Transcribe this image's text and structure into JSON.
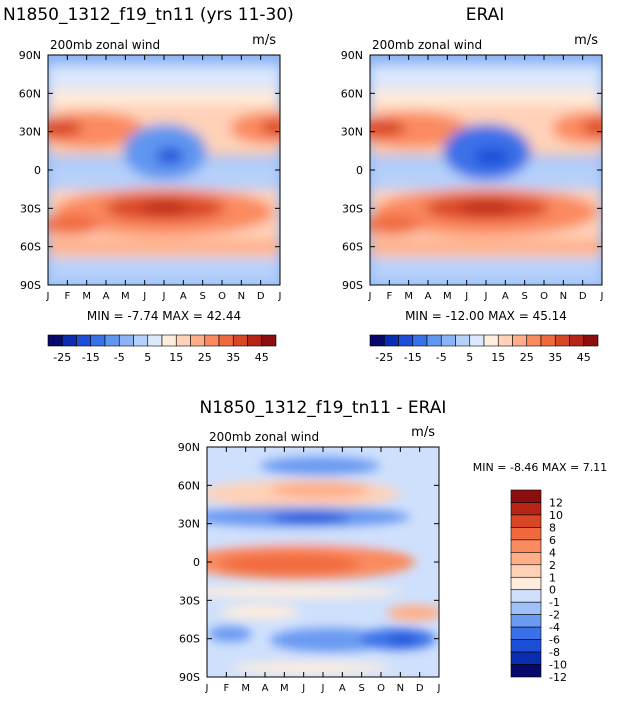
{
  "colors": {
    "model_scale": [
      "#08086b",
      "#0a2cb0",
      "#1c4ed8",
      "#3a71e8",
      "#5f96f0",
      "#8bb3f5",
      "#b5d0fa",
      "#dce9fd",
      "#ffeedd",
      "#ffd2b8",
      "#ffae88",
      "#fb8a5e",
      "#f06a3e",
      "#d94626",
      "#b52414",
      "#8c0e0e"
    ],
    "diff_scale": [
      "#08086b",
      "#0a2cb0",
      "#1c4ed8",
      "#3a71e8",
      "#6a9af2",
      "#a0c1f7",
      "#cfe0fc",
      "#ffeedd",
      "#ffd2b8",
      "#ffae88",
      "#fb8a5e",
      "#f06a3e",
      "#d94626",
      "#b52414",
      "#8c0e0e"
    ]
  },
  "chart_data": [
    {
      "type": "heatmap",
      "title": "N1850_1312_f19_tn11 (yrs 11-30)",
      "subtitle": "200mb zonal wind",
      "units": "m/s",
      "x_ticks": [
        "J",
        "F",
        "M",
        "A",
        "M",
        "J",
        "J",
        "A",
        "S",
        "O",
        "N",
        "D",
        "J"
      ],
      "y_ticks": [
        "90N",
        "60N",
        "30N",
        "0",
        "30S",
        "60S",
        "90S"
      ],
      "ylim": [
        -90,
        90
      ],
      "stats": "MIN =   -7.74 MAX =   42.44",
      "colorbar_labels": [
        "-25",
        "-15",
        "-5",
        "5",
        "15",
        "25",
        "35",
        "45"
      ],
      "features": [
        {
          "month": 0.5,
          "lat": 30,
          "value": 40
        },
        {
          "month": 11.5,
          "lat": 32,
          "value": 36
        },
        {
          "month": 6.5,
          "lat": 10,
          "value": -7.74
        },
        {
          "month": 6.5,
          "lat": -30,
          "value": 42.44
        }
      ]
    },
    {
      "type": "heatmap",
      "title": "ERAI",
      "subtitle": "200mb zonal wind",
      "units": "m/s",
      "x_ticks": [
        "J",
        "F",
        "M",
        "A",
        "M",
        "J",
        "J",
        "A",
        "S",
        "O",
        "N",
        "D",
        "J"
      ],
      "y_ticks": [
        "90N",
        "60N",
        "30N",
        "0",
        "30S",
        "60S",
        "90S"
      ],
      "ylim": [
        -90,
        90
      ],
      "stats": "MIN =  -12.00 MAX =   45.14",
      "colorbar_labels": [
        "-25",
        "-15",
        "-5",
        "5",
        "15",
        "25",
        "35",
        "45"
      ],
      "features": [
        {
          "month": 0.5,
          "lat": 30,
          "value": 43
        },
        {
          "month": 11.5,
          "lat": 32,
          "value": 38
        },
        {
          "month": 6.5,
          "lat": 10,
          "value": -12.0
        },
        {
          "month": 6.5,
          "lat": -30,
          "value": 45.14
        }
      ]
    },
    {
      "type": "heatmap",
      "title": "N1850_1312_f19_tn11 - ERAI",
      "subtitle": "200mb zonal wind",
      "units": "m/s",
      "x_ticks": [
        "J",
        "F",
        "M",
        "A",
        "M",
        "J",
        "J",
        "A",
        "S",
        "O",
        "N",
        "D",
        "J"
      ],
      "y_ticks": [
        "90N",
        "60N",
        "30N",
        "0",
        "30S",
        "60S",
        "90S"
      ],
      "ylim": [
        -90,
        90
      ],
      "stats": "MIN =   -8.46 MAX =    7.11",
      "colorbar_labels": [
        "12",
        "10",
        "8",
        "6",
        "4",
        "2",
        "1",
        "0",
        "-1",
        "-2",
        "-4",
        "-6",
        "-8",
        "-10",
        "-12"
      ],
      "features": [
        {
          "month": 5.5,
          "lat": 0,
          "value": 7.11
        },
        {
          "month": 10.5,
          "lat": -60,
          "value": -8.46
        }
      ]
    }
  ]
}
